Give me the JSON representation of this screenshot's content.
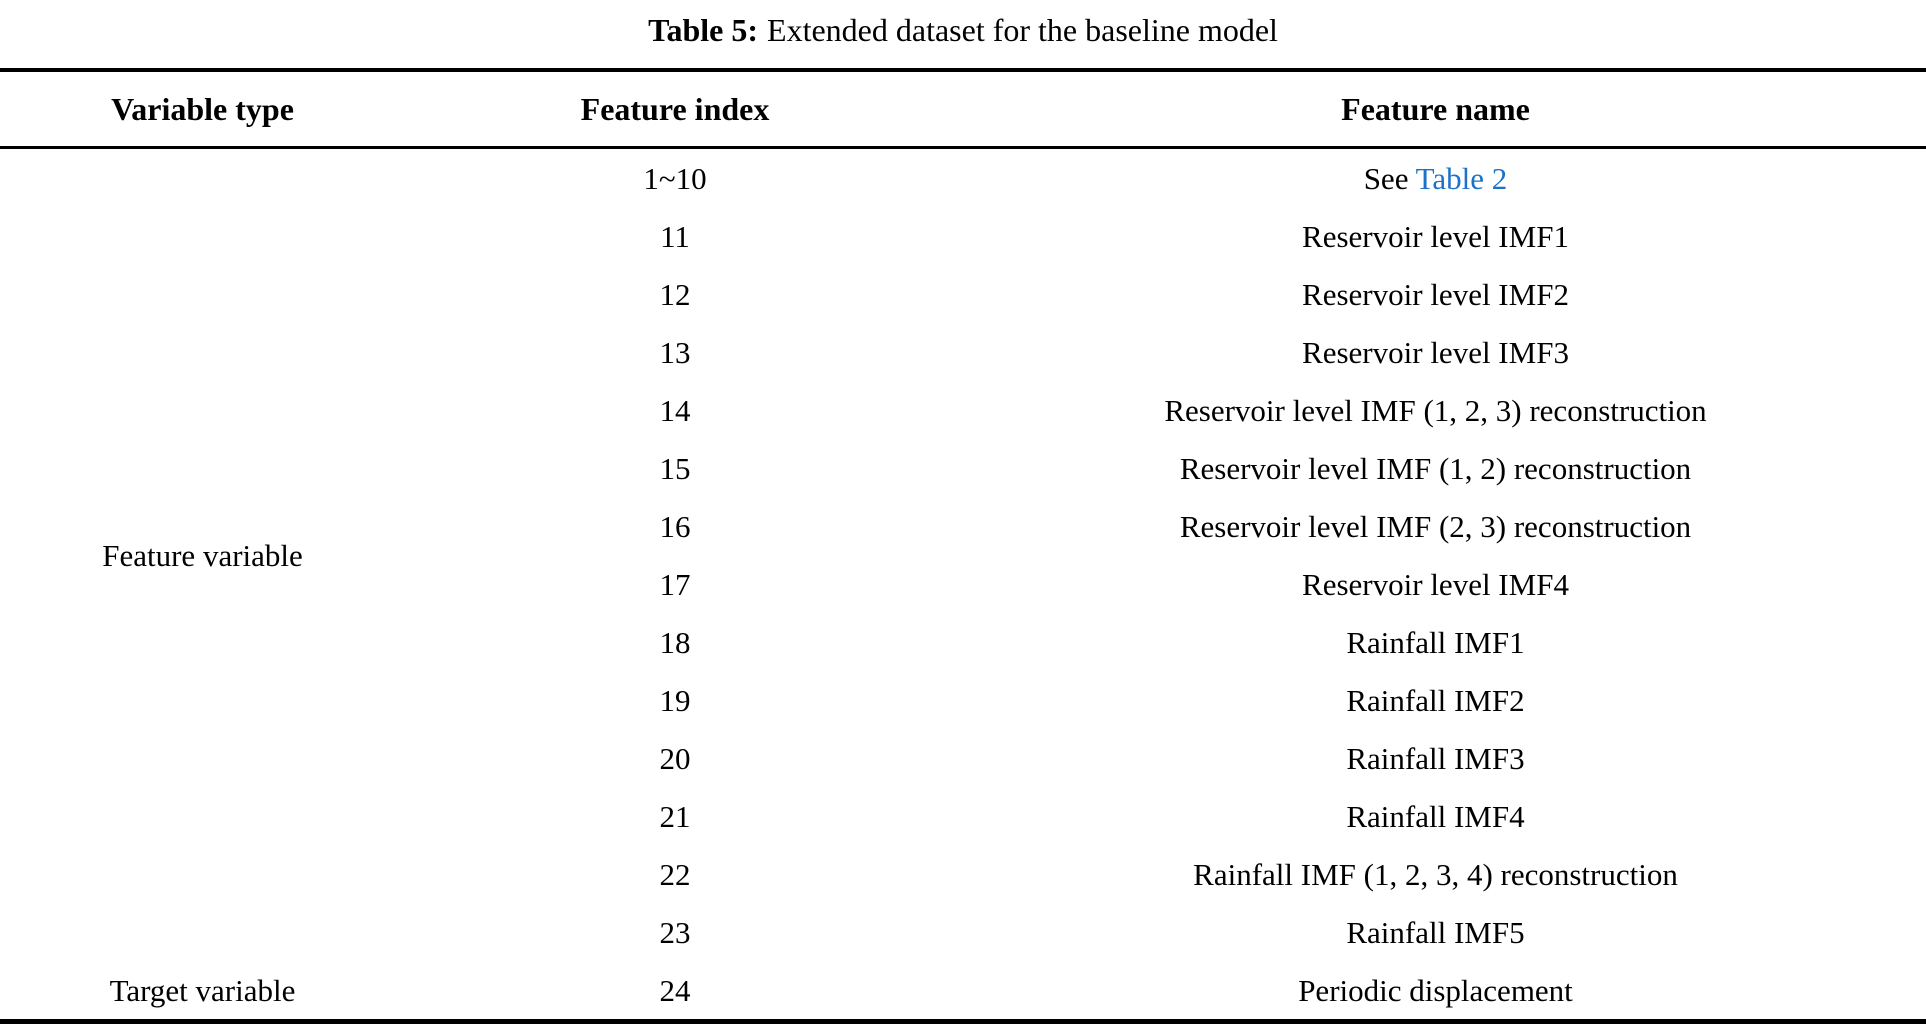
{
  "caption": {
    "label": "Table 5:",
    "text": "Extended dataset for the baseline model"
  },
  "table": {
    "headers": [
      "Variable type",
      "Feature index",
      "Feature name"
    ],
    "groups": [
      {
        "label": "Feature variable",
        "span": 14
      },
      {
        "label": "Target variable",
        "span": 1
      }
    ],
    "rows": [
      {
        "index": "1~10",
        "name_parts": [
          {
            "text": "See ",
            "link": false
          },
          {
            "text": "Table 2",
            "link": true
          }
        ]
      },
      {
        "index": "11",
        "name_parts": [
          {
            "text": "Reservoir level IMF1",
            "link": false
          }
        ]
      },
      {
        "index": "12",
        "name_parts": [
          {
            "text": "Reservoir level IMF2",
            "link": false
          }
        ]
      },
      {
        "index": "13",
        "name_parts": [
          {
            "text": "Reservoir level IMF3",
            "link": false
          }
        ]
      },
      {
        "index": "14",
        "name_parts": [
          {
            "text": "Reservoir level IMF (1, 2, 3) reconstruction",
            "link": false
          }
        ]
      },
      {
        "index": "15",
        "name_parts": [
          {
            "text": "Reservoir level IMF (1, 2) reconstruction",
            "link": false
          }
        ]
      },
      {
        "index": "16",
        "name_parts": [
          {
            "text": "Reservoir level IMF (2, 3) reconstruction",
            "link": false
          }
        ]
      },
      {
        "index": "17",
        "name_parts": [
          {
            "text": "Reservoir level IMF4",
            "link": false
          }
        ]
      },
      {
        "index": "18",
        "name_parts": [
          {
            "text": "Rainfall IMF1",
            "link": false
          }
        ]
      },
      {
        "index": "19",
        "name_parts": [
          {
            "text": "Rainfall IMF2",
            "link": false
          }
        ]
      },
      {
        "index": "20",
        "name_parts": [
          {
            "text": "Rainfall IMF3",
            "link": false
          }
        ]
      },
      {
        "index": "21",
        "name_parts": [
          {
            "text": "Rainfall IMF4",
            "link": false
          }
        ]
      },
      {
        "index": "22",
        "name_parts": [
          {
            "text": "Rainfall IMF (1, 2, 3, 4) reconstruction",
            "link": false
          }
        ]
      },
      {
        "index": "23",
        "name_parts": [
          {
            "text": "Rainfall IMF5",
            "link": false
          }
        ]
      },
      {
        "index": "24",
        "name_parts": [
          {
            "text": "Periodic displacement",
            "link": false
          }
        ]
      }
    ]
  },
  "colors": {
    "text": "#000000",
    "rule": "#000000",
    "link_blue": "#1c72c8"
  }
}
